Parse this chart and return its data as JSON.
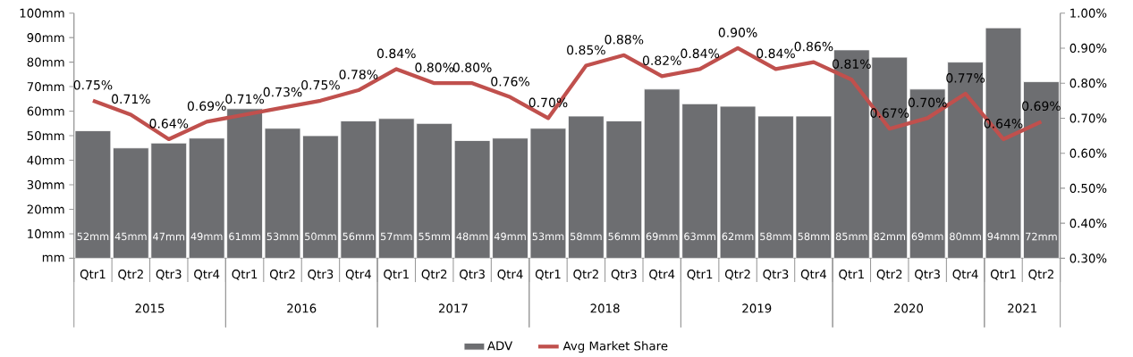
{
  "chart_data": {
    "type": "bar",
    "categories": [
      "Qtr1",
      "Qtr2",
      "Qtr3",
      "Qtr4",
      "Qtr1",
      "Qtr2",
      "Qtr3",
      "Qtr4",
      "Qtr1",
      "Qtr2",
      "Qtr3",
      "Qtr4",
      "Qtr1",
      "Qtr2",
      "Qtr3",
      "Qtr4",
      "Qtr1",
      "Qtr2",
      "Qtr3",
      "Qtr4",
      "Qtr1",
      "Qtr2",
      "Qtr3",
      "Qtr4",
      "Qtr1",
      "Qtr2"
    ],
    "series": [
      {
        "name": "ADV",
        "color": "#6d6e71",
        "values": [
          52,
          45,
          47,
          49,
          61,
          53,
          50,
          56,
          57,
          55,
          48,
          49,
          53,
          58,
          56,
          69,
          63,
          62,
          58,
          58,
          85,
          82,
          69,
          80,
          94,
          72
        ],
        "value_labels": [
          "52mm",
          "45mm",
          "47mm",
          "49mm",
          "61mm",
          "53mm",
          "50mm",
          "56mm",
          "57mm",
          "55mm",
          "48mm",
          "49mm",
          "53mm",
          "58mm",
          "56mm",
          "69mm",
          "63mm",
          "62mm",
          "58mm",
          "58mm",
          "85mm",
          "82mm",
          "69mm",
          "80mm",
          "94mm",
          "72mm"
        ]
      },
      {
        "name": "Avg Market Share",
        "type": "line",
        "axis": "y2",
        "color": "#c0504d",
        "values": [
          0.75,
          0.71,
          0.64,
          0.69,
          0.71,
          0.73,
          0.75,
          0.78,
          0.84,
          0.8,
          0.8,
          0.76,
          0.7,
          0.85,
          0.88,
          0.82,
          0.84,
          0.9,
          0.84,
          0.86,
          0.81,
          0.67,
          0.7,
          0.77,
          0.64,
          0.69
        ],
        "value_labels": [
          "0.75%",
          "0.71%",
          "0.64%",
          "0.69%",
          "0.71%",
          "0.73%",
          "0.75%",
          "0.78%",
          "0.84%",
          "0.80%",
          "0.80%",
          "0.76%",
          "0.70%",
          "0.85%",
          "0.88%",
          "0.82%",
          "0.84%",
          "0.90%",
          "0.84%",
          "0.86%",
          "0.81%",
          "0.67%",
          "0.70%",
          "0.77%",
          "0.64%",
          "0.69%"
        ]
      }
    ],
    "annotations": [
      "2015",
      "2016",
      "2017",
      "2018",
      "2019",
      "2020",
      "2021"
    ],
    "ylim": [
      0,
      100
    ],
    "yticks": [
      {
        "value": 0,
        "label": "mm"
      },
      {
        "value": 10,
        "label": "10mm"
      },
      {
        "value": 20,
        "label": "20mm"
      },
      {
        "value": 30,
        "label": "30mm"
      },
      {
        "value": 40,
        "label": "40mm"
      },
      {
        "value": 50,
        "label": "50mm"
      },
      {
        "value": 60,
        "label": "60mm"
      },
      {
        "value": 70,
        "label": "70mm"
      },
      {
        "value": 80,
        "label": "80mm"
      },
      {
        "value": 90,
        "label": "90mm"
      },
      {
        "value": 100,
        "label": "100mm"
      }
    ],
    "y2lim": [
      0.3,
      1.0
    ],
    "y2ticks": [
      {
        "value": 0.3,
        "label": "0.30%"
      },
      {
        "value": 0.4,
        "label": "0.40%"
      },
      {
        "value": 0.5,
        "label": "0.50%"
      },
      {
        "value": 0.6,
        "label": "0.60%"
      },
      {
        "value": 0.7,
        "label": "0.70%"
      },
      {
        "value": 0.8,
        "label": "0.80%"
      },
      {
        "value": 0.9,
        "label": "0.90%"
      },
      {
        "value": 1.0,
        "label": "1.00%"
      }
    ],
    "legend": "bottom"
  }
}
